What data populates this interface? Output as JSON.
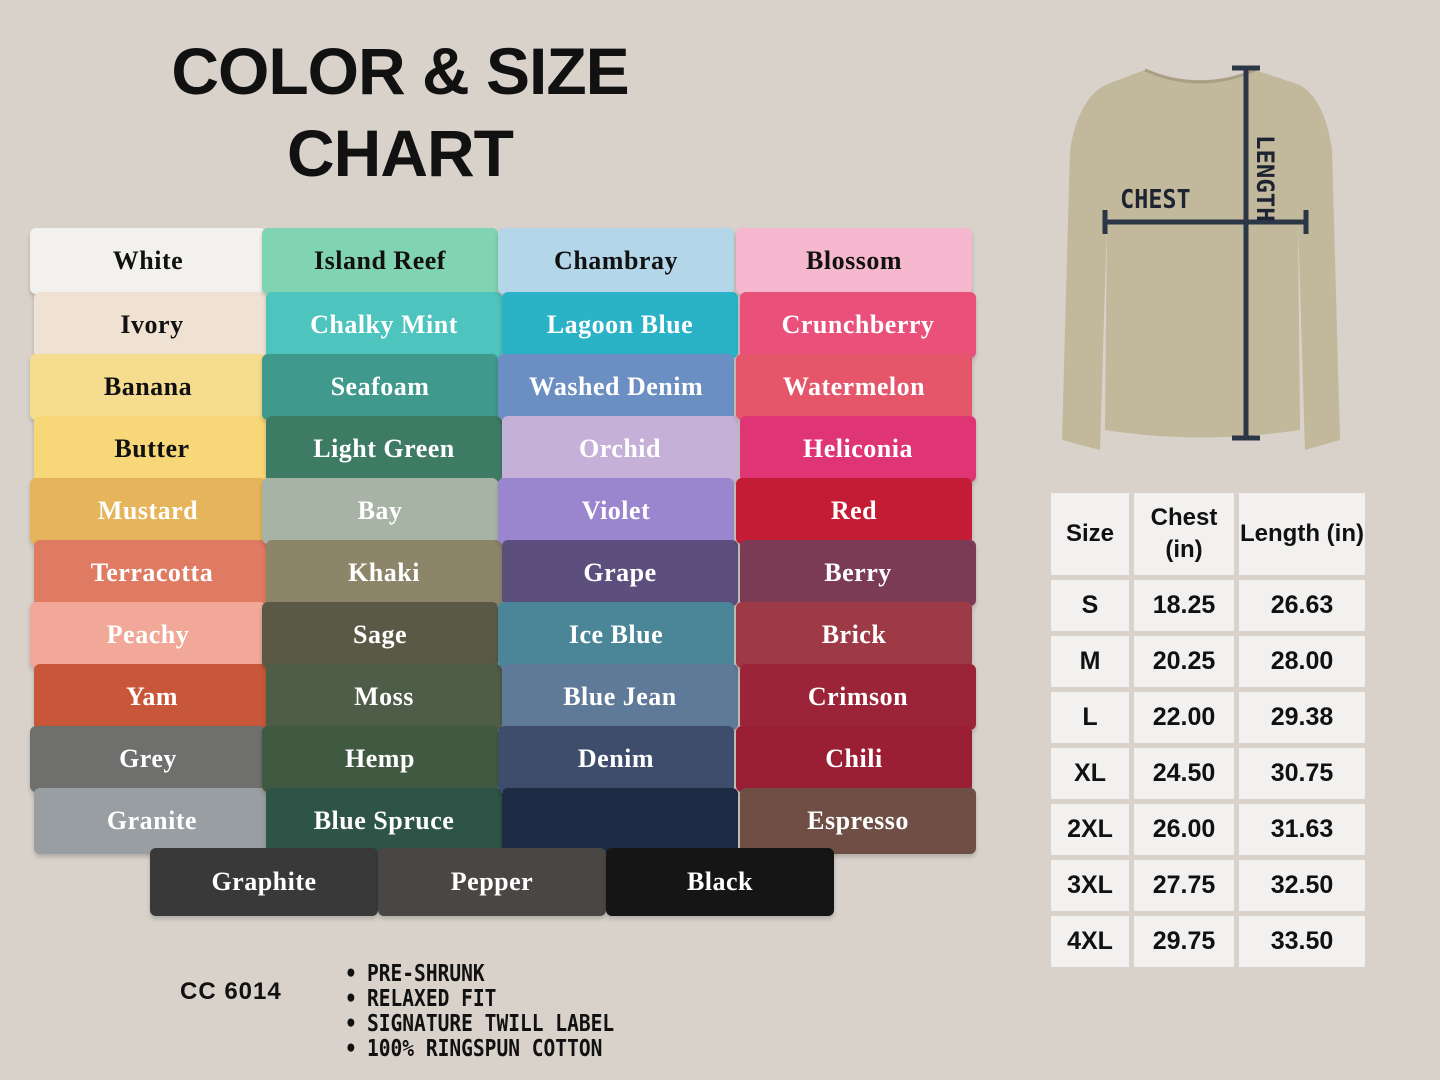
{
  "title": [
    "COLOR & SIZE",
    "CHART"
  ],
  "columns": [
    [
      {
        "name": "White",
        "bg": "#f3f1ed",
        "fg": "#111"
      },
      {
        "name": "Ivory",
        "bg": "#efe2d2",
        "fg": "#111"
      },
      {
        "name": "Banana",
        "bg": "#f6dc8e",
        "fg": "#111"
      },
      {
        "name": "Butter",
        "bg": "#f8d778",
        "fg": "#111"
      },
      {
        "name": "Mustard",
        "bg": "#e6b45a",
        "fg": "#fff"
      },
      {
        "name": "Terracotta",
        "bg": "#e07b63",
        "fg": "#fff"
      },
      {
        "name": "Peachy",
        "bg": "#f1a898",
        "fg": "#fff"
      },
      {
        "name": "Yam",
        "bg": "#c8573a",
        "fg": "#fff"
      },
      {
        "name": "Grey",
        "bg": "#6f6f6d",
        "fg": "#fff"
      },
      {
        "name": "Granite",
        "bg": "#999ea2",
        "fg": "#fff"
      }
    ],
    [
      {
        "name": "Island Reef",
        "bg": "#80d4b1",
        "fg": "#111"
      },
      {
        "name": "Chalky Mint",
        "bg": "#4dc4be",
        "fg": "#fff"
      },
      {
        "name": "Seafoam",
        "bg": "#3f998c",
        "fg": "#fff"
      },
      {
        "name": "Light Green",
        "bg": "#3e7b65",
        "fg": "#fff"
      },
      {
        "name": "Bay",
        "bg": "#a7b4a5",
        "fg": "#fff"
      },
      {
        "name": "Khaki",
        "bg": "#8d856a",
        "fg": "#fff"
      },
      {
        "name": "Sage",
        "bg": "#5a5946",
        "fg": "#fff"
      },
      {
        "name": "Moss",
        "bg": "#4e5d48",
        "fg": "#fff"
      },
      {
        "name": "Hemp",
        "bg": "#3f5a41",
        "fg": "#fff"
      },
      {
        "name": "Blue Spruce",
        "bg": "#2e5347",
        "fg": "#fff"
      }
    ],
    [
      {
        "name": "Chambray",
        "bg": "#b4d6e9",
        "fg": "#111"
      },
      {
        "name": "Lagoon Blue",
        "bg": "#2ab2c7",
        "fg": "#fff"
      },
      {
        "name": "Washed Denim",
        "bg": "#6b8fc3",
        "fg": "#fff"
      },
      {
        "name": "Orchid",
        "bg": "#c5b1d8",
        "fg": "#fff"
      },
      {
        "name": "Violet",
        "bg": "#9a86cf",
        "fg": "#fff"
      },
      {
        "name": "Grape",
        "bg": "#5c4f7d",
        "fg": "#fff"
      },
      {
        "name": "Ice Blue",
        "bg": "#4b8698",
        "fg": "#fff"
      },
      {
        "name": "Blue Jean",
        "bg": "#5e7a98",
        "fg": "#fff"
      },
      {
        "name": "Denim",
        "bg": "#3d4d6b",
        "fg": "#fff"
      },
      {
        "name": "",
        "bg": "#1e2b45",
        "fg": "#fff"
      }
    ],
    [
      {
        "name": "Blossom",
        "bg": "#f6b8ce",
        "fg": "#111"
      },
      {
        "name": "Crunchberry",
        "bg": "#e9507a",
        "fg": "#fff"
      },
      {
        "name": "Watermelon",
        "bg": "#e5566a",
        "fg": "#fff"
      },
      {
        "name": "Heliconia",
        "bg": "#df3574",
        "fg": "#fff"
      },
      {
        "name": "Red",
        "bg": "#c31c34",
        "fg": "#fff"
      },
      {
        "name": "Berry",
        "bg": "#7b3b55",
        "fg": "#fff"
      },
      {
        "name": "Brick",
        "bg": "#9e3a45",
        "fg": "#fff"
      },
      {
        "name": "Crimson",
        "bg": "#9b2439",
        "fg": "#fff"
      },
      {
        "name": "Chili",
        "bg": "#9a1f35",
        "fg": "#fff"
      },
      {
        "name": "Espresso",
        "bg": "#6f4e45",
        "fg": "#fff"
      }
    ]
  ],
  "bottom_row": [
    {
      "name": "Graphite",
      "bg": "#393939",
      "fg": "#fff"
    },
    {
      "name": "Pepper",
      "bg": "#4a4644",
      "fg": "#fff"
    },
    {
      "name": "Black",
      "bg": "#151515",
      "fg": "#fff"
    }
  ],
  "model": "CC 6014",
  "features": [
    "PRE-SHRUNK",
    "RELAXED FIT",
    "SIGNATURE TWILL LABEL",
    "100% RINGSPUN COTTON"
  ],
  "diagram": {
    "chest_label": "CHEST",
    "length_label": "LENGTH",
    "shirt_color": "#c2b89b"
  },
  "size_table": {
    "headers": [
      "Size",
      "Chest (in)",
      "Length (in)"
    ],
    "rows": [
      [
        "S",
        "18.25",
        "26.63"
      ],
      [
        "M",
        "20.25",
        "28.00"
      ],
      [
        "L",
        "22.00",
        "29.38"
      ],
      [
        "XL",
        "24.50",
        "30.75"
      ],
      [
        "2XL",
        "26.00",
        "31.63"
      ],
      [
        "3XL",
        "27.75",
        "32.50"
      ],
      [
        "4XL",
        "29.75",
        "33.50"
      ]
    ]
  }
}
